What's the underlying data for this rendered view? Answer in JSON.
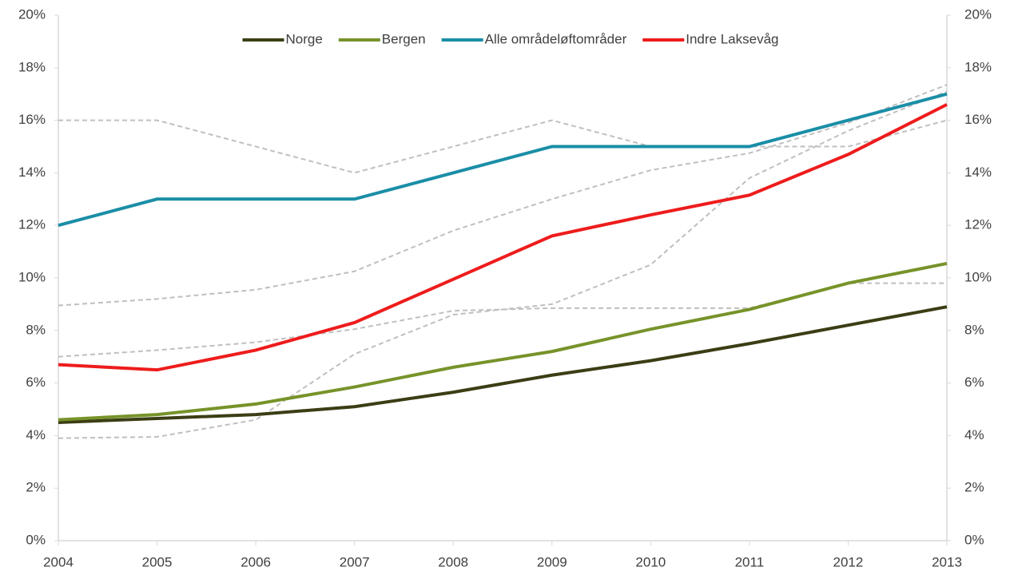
{
  "chart_data": {
    "type": "line",
    "x": [
      2004,
      2005,
      2006,
      2007,
      2008,
      2009,
      2010,
      2011,
      2012,
      2013
    ],
    "xlim": [
      2004,
      2013
    ],
    "xticks": [
      2004,
      2005,
      2006,
      2007,
      2008,
      2009,
      2010,
      2011,
      2012,
      2013
    ],
    "ylim": [
      0,
      20
    ],
    "yticks": [
      {
        "value": 0,
        "label": "0%"
      },
      {
        "value": 2,
        "label": "2%"
      },
      {
        "value": 4,
        "label": "4%"
      },
      {
        "value": 6,
        "label": "6%"
      },
      {
        "value": 8,
        "label": "8%"
      },
      {
        "value": 10,
        "label": "10%"
      },
      {
        "value": 12,
        "label": "12%"
      },
      {
        "value": 14,
        "label": "14%"
      },
      {
        "value": 16,
        "label": "16%"
      },
      {
        "value": 18,
        "label": "18%"
      },
      {
        "value": 20,
        "label": "20%"
      }
    ],
    "y2lim": [
      0,
      20
    ],
    "y2ticks": [
      {
        "value": 0,
        "label": "0%"
      },
      {
        "value": 2,
        "label": "2%"
      },
      {
        "value": 4,
        "label": "4%"
      },
      {
        "value": 6,
        "label": "6%"
      },
      {
        "value": 8,
        "label": "8%"
      },
      {
        "value": 10,
        "label": "10%"
      },
      {
        "value": 12,
        "label": "12%"
      },
      {
        "value": 14,
        "label": "14%"
      },
      {
        "value": 16,
        "label": "16%"
      },
      {
        "value": 18,
        "label": "18%"
      },
      {
        "value": 20,
        "label": "20%"
      }
    ],
    "legend": "top",
    "series": [
      {
        "color": "#bfbfbf",
        "dashed": true,
        "values": [
          16,
          16,
          15,
          14,
          15,
          16,
          15,
          15,
          15,
          16
        ]
      },
      {
        "color": "#bfbfbf",
        "dashed": true,
        "values": [
          8.95,
          9.2,
          9.55,
          10.25,
          11.8,
          13,
          14.1,
          14.75,
          15.9,
          17.35
        ]
      },
      {
        "color": "#bfbfbf",
        "dashed": true,
        "values": [
          7.0,
          7.25,
          7.55,
          8.05,
          8.75,
          8.85,
          8.85,
          8.85,
          9.8,
          9.8
        ]
      },
      {
        "color": "#bfbfbf",
        "dashed": true,
        "values": [
          3.9,
          3.95,
          4.6,
          7.1,
          8.6,
          9.0,
          10.5,
          13.8,
          15.6,
          17.1
        ]
      },
      {
        "name": "Norge",
        "color": "#3b3d14",
        "values": [
          4.5,
          4.65,
          4.8,
          5.1,
          5.65,
          6.3,
          6.85,
          7.5,
          8.2,
          8.9
        ]
      },
      {
        "name": "Bergen",
        "color": "#77932a",
        "values": [
          4.6,
          4.8,
          5.2,
          5.85,
          6.6,
          7.2,
          8.05,
          8.8,
          9.8,
          10.55
        ]
      },
      {
        "name": "Alle områdeløftområder",
        "color": "#1a8ea6",
        "values": [
          12,
          13,
          13,
          13,
          14,
          15,
          15,
          15,
          16,
          17
        ]
      },
      {
        "name": "Indre Laksevåg",
        "color": "#ee1c1c",
        "values": [
          6.7,
          6.5,
          7.25,
          8.3,
          9.95,
          11.6,
          12.4,
          13.15,
          14.7,
          16.6
        ]
      }
    ]
  }
}
